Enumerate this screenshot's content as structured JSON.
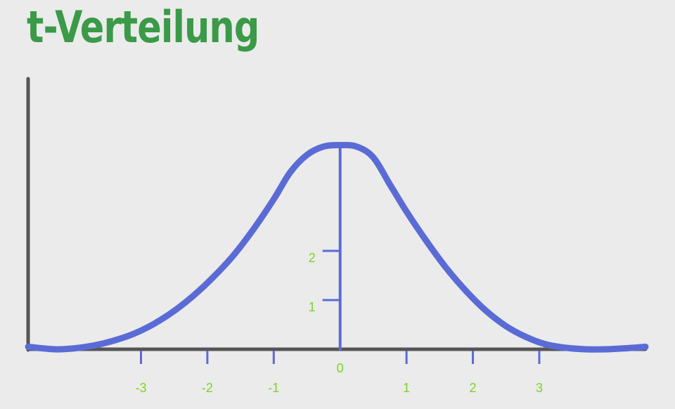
{
  "title": "t-Verteilung",
  "colors": {
    "title": "#3a9a48",
    "axis": "#555555",
    "curve": "#5b6bd6",
    "tick": "#5b6bd6",
    "label": "#7ed321"
  },
  "chart_data": {
    "type": "line",
    "title": "t-Verteilung",
    "xlabel": "",
    "ylabel": "",
    "x_ticks": [
      {
        "value": -3,
        "label": "-3"
      },
      {
        "value": -2,
        "label": "-2"
      },
      {
        "value": -1,
        "label": "-1"
      },
      {
        "value": 0,
        "label": "0"
      },
      {
        "value": 1,
        "label": "1"
      },
      {
        "value": 2,
        "label": "2"
      },
      {
        "value": 3,
        "label": "3"
      }
    ],
    "y_ticks": [
      {
        "value": 1,
        "label": "1"
      },
      {
        "value": 2,
        "label": "2"
      }
    ],
    "xlim": [
      -4.7,
      4.6
    ],
    "ylim": [
      0,
      5.5
    ],
    "series": [
      {
        "x": [
          -4.7,
          -4.3,
          -4.0,
          -3.7,
          -3.4,
          -3.1,
          -2.8,
          -2.5,
          -2.2,
          -1.9,
          -1.6,
          -1.3,
          -1.0,
          -0.75,
          -0.5,
          -0.25,
          0.0,
          0.25,
          0.5,
          0.75,
          1.0,
          1.3,
          1.6,
          1.9,
          2.2,
          2.5,
          2.8,
          3.1,
          3.4,
          3.7,
          4.0,
          4.3,
          4.6
        ],
        "y": [
          0.05,
          0.0,
          0.02,
          0.08,
          0.18,
          0.32,
          0.52,
          0.78,
          1.1,
          1.48,
          1.92,
          2.45,
          3.05,
          3.6,
          3.95,
          4.12,
          4.15,
          4.12,
          3.9,
          3.35,
          2.8,
          2.2,
          1.65,
          1.18,
          0.78,
          0.47,
          0.25,
          0.1,
          0.03,
          0.0,
          0.0,
          0.02,
          0.05
        ]
      }
    ]
  }
}
